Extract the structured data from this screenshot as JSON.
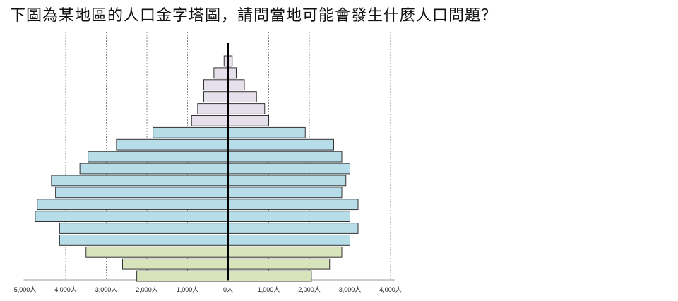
{
  "question": "下圖為某地區的人口金字塔圖，請問當地可能會發生什麼人口問題？",
  "chart_data": {
    "type": "bar",
    "orientation": "horizontal-pyramid",
    "title": "",
    "xlabel": "",
    "ylabel": "",
    "xlim": [
      -5000,
      4000
    ],
    "x_ticks": [
      -5000,
      -4000,
      -3000,
      -2000,
      -1000,
      0,
      1000,
      2000,
      3000,
      4000
    ],
    "tick_labels": [
      "5,000人",
      "4,000人",
      "3,000人",
      "2,000人",
      "1,000人",
      "0人",
      "1,000人",
      "2,000人",
      "3,000人",
      "4,000人"
    ],
    "grid": true,
    "colors": {
      "old": "#e6e0ec",
      "middle": "#b7dde8",
      "young": "#d8e4bc",
      "stroke": "#333333",
      "grid": "#888888"
    },
    "series": [
      {
        "values": [
          -100,
          -350,
          -600,
          -600,
          -750,
          -900,
          -1850,
          -2750,
          -3450,
          -3650,
          -4350,
          -4250,
          -4700,
          -4750,
          -4150,
          -4150,
          -3500,
          -2600,
          -2250
        ]
      },
      {
        "values": [
          100,
          200,
          400,
          700,
          900,
          1000,
          1900,
          2600,
          2800,
          3000,
          2900,
          2800,
          3200,
          3000,
          3200,
          3000,
          2800,
          2500,
          2050
        ]
      }
    ],
    "bar_groups": [
      "old",
      "old",
      "old",
      "old",
      "old",
      "old",
      "middle",
      "middle",
      "middle",
      "middle",
      "middle",
      "middle",
      "middle",
      "middle",
      "middle",
      "middle",
      "young",
      "young",
      "young"
    ]
  }
}
